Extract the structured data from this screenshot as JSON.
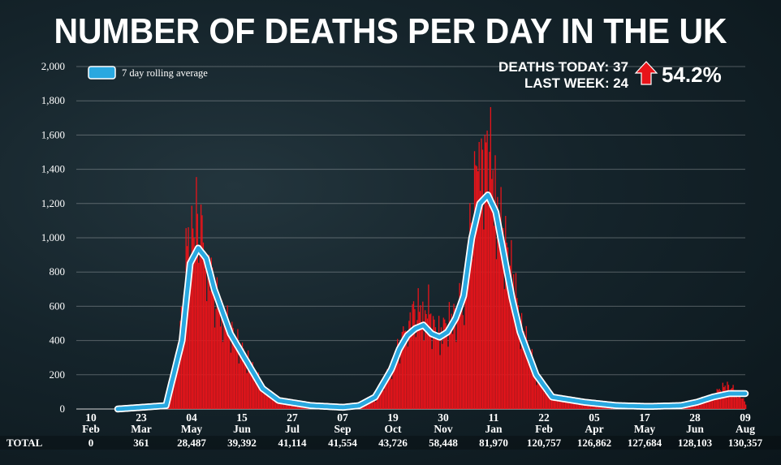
{
  "title": "NUMBER OF DEATHS PER DAY IN THE UK",
  "stats": {
    "deaths_today": "DEATHS TODAY: 37",
    "last_week": "LAST WEEK: 24",
    "change": "54.2%",
    "change_direction": "up",
    "arrow_color": "#e8141a"
  },
  "chart_data": {
    "type": "bar",
    "y_ticks": [
      "0",
      "200",
      "400",
      "600",
      "800",
      "1,000",
      "1,200",
      "1,400",
      "1,600",
      "1,800",
      "2,000"
    ],
    "ylim": [
      0,
      2000
    ],
    "grid": true,
    "legend": {
      "position": "top-left",
      "label": "7 day rolling average"
    },
    "x_labels": [
      {
        "day": "10",
        "month": "Feb"
      },
      {
        "day": "23",
        "month": "Mar"
      },
      {
        "day": "04",
        "month": "May"
      },
      {
        "day": "15",
        "month": "Jun"
      },
      {
        "day": "27",
        "month": "Jul"
      },
      {
        "day": "07",
        "month": "Sep"
      },
      {
        "day": "19",
        "month": "Oct"
      },
      {
        "day": "30",
        "month": "Nov"
      },
      {
        "day": "11",
        "month": "Jan"
      },
      {
        "day": "22",
        "month": "Feb"
      },
      {
        "day": "05",
        "month": "Apr"
      },
      {
        "day": "17",
        "month": "May"
      },
      {
        "day": "28",
        "month": "Jun"
      },
      {
        "day": "09",
        "month": "Aug"
      }
    ],
    "totals_label": "TOTAL",
    "totals": [
      "0",
      "361",
      "28,487",
      "39,392",
      "41,114",
      "41,554",
      "43,726",
      "58,448",
      "81,970",
      "120,757",
      "126,862",
      "127,684",
      "128,103",
      "130,357"
    ],
    "series": [
      {
        "name": "7 day rolling average",
        "color": "#29a8e0",
        "x": [
          0,
          42,
          56,
          63,
          70,
          77,
          84,
          98,
          112,
          126,
          140,
          168,
          196,
          210,
          224,
          238,
          245,
          252,
          259,
          266,
          273,
          280,
          287,
          294,
          301,
          308,
          315,
          322,
          329,
          336,
          343,
          350,
          364,
          378,
          406,
          434,
          462,
          490,
          504,
          518,
          532,
          546
        ],
        "values": [
          0,
          20,
          400,
          850,
          940,
          880,
          700,
          440,
          280,
          120,
          50,
          20,
          10,
          20,
          70,
          230,
          350,
          430,
          470,
          490,
          440,
          420,
          450,
          530,
          660,
          1000,
          1200,
          1250,
          1150,
          900,
          650,
          450,
          200,
          70,
          40,
          20,
          15,
          20,
          40,
          70,
          90,
          90
        ]
      },
      {
        "name": "Daily deaths",
        "color": "#e8141a",
        "x": [
          0,
          42,
          50,
          56,
          60,
          63,
          66,
          70,
          74,
          77,
          80,
          84,
          91,
          98,
          105,
          112,
          119,
          126,
          140,
          168,
          196,
          210,
          224,
          238,
          245,
          252,
          259,
          266,
          270,
          273,
          280,
          287,
          294,
          301,
          305,
          308,
          312,
          315,
          318,
          322,
          325,
          329,
          336,
          343,
          350,
          357,
          364,
          378,
          406,
          434,
          462,
          490,
          504,
          518,
          525,
          532,
          540,
          546
        ],
        "values": [
          0,
          20,
          250,
          600,
          980,
          1100,
          1050,
          1220,
          980,
          900,
          850,
          680,
          560,
          470,
          380,
          300,
          220,
          130,
          45,
          15,
          8,
          15,
          60,
          250,
          380,
          520,
          600,
          570,
          610,
          500,
          450,
          520,
          560,
          700,
          900,
          1250,
          1400,
          1820,
          1300,
          1700,
          1400,
          1250,
          1000,
          820,
          500,
          380,
          200,
          70,
          30,
          12,
          10,
          15,
          30,
          80,
          130,
          140,
          90,
          37
        ]
      }
    ]
  }
}
